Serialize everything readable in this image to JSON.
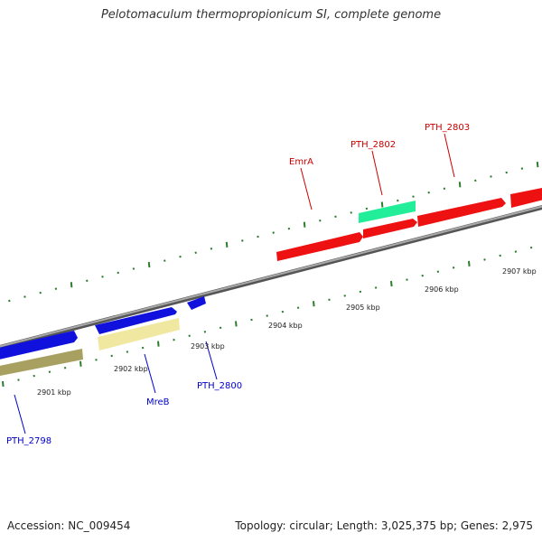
{
  "title": "Pelotomaculum thermopropionicum SI, complete genome",
  "footer": {
    "accession": "Accession: NC_009454",
    "topology": "Topology: circular; Length: 3,025,375 bp; Genes: 2,975"
  },
  "colors": {
    "backbone": "#8a8a8a",
    "tick": "#2e7d2e",
    "red_gene": "#ee1111",
    "blue_gene": "#1111dd",
    "teal_gene": "#22ee99",
    "khaki_gene": "#a8a060",
    "pale_gene": "#f0e8a0",
    "red_label": "#cc0000",
    "blue_label": "#0000cc"
  },
  "kbp_labels": [
    "2901 kbp",
    "2902 kbp",
    "2903 kbp",
    "2904 kbp",
    "2905 kbp",
    "2906 kbp",
    "2907 kbp"
  ],
  "gene_labels": {
    "emra": "EmrA",
    "pth2802": "PTH_2802",
    "pth2803": "PTH_2803",
    "pth2798": "PTH_2798",
    "mreb": "MreB",
    "pth2800": "PTH_2800"
  }
}
